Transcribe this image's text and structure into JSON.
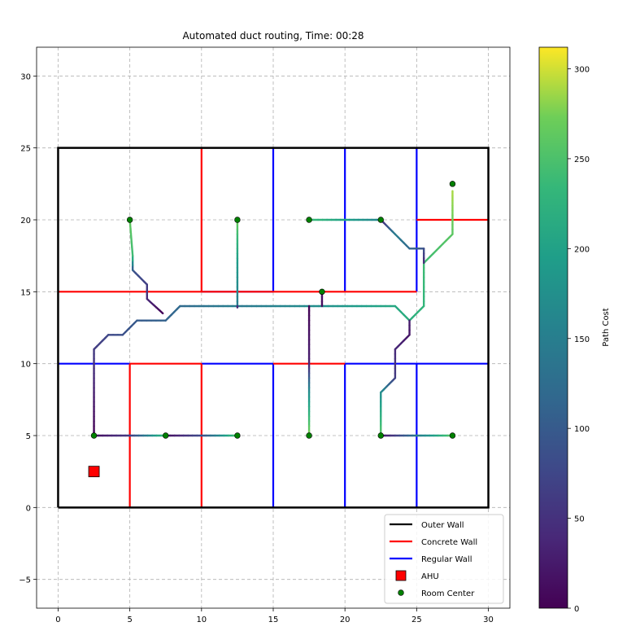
{
  "chart_data": {
    "type": "line",
    "title": "Automated duct routing, Time: 00:28",
    "xlabel": "",
    "ylabel": "",
    "xlim": [
      -1.5,
      31.5
    ],
    "ylim": [
      -7,
      32
    ],
    "x_ticks": [
      0,
      5,
      10,
      15,
      20,
      25,
      30
    ],
    "y_ticks": [
      -5,
      0,
      5,
      10,
      15,
      20,
      25,
      30
    ],
    "grid": true,
    "legend_position": "lower-right",
    "legend": [
      {
        "name": "Outer Wall",
        "kind": "line",
        "color": "#000000"
      },
      {
        "name": "Concrete Wall",
        "kind": "line",
        "color": "#ff0000"
      },
      {
        "name": "Regular Wall",
        "kind": "line",
        "color": "#0000ff"
      },
      {
        "name": "AHU",
        "kind": "square",
        "color": "#ff0000"
      },
      {
        "name": "Room Center",
        "kind": "dot",
        "color": "#008000"
      }
    ],
    "outer_wall": [
      [
        0,
        0
      ],
      [
        30,
        0
      ],
      [
        30,
        25
      ],
      [
        0,
        25
      ],
      [
        0,
        0
      ]
    ],
    "concrete_walls": [
      [
        [
          0,
          15
        ],
        [
          25,
          15
        ]
      ],
      [
        [
          10,
          15
        ],
        [
          10,
          25
        ]
      ],
      [
        [
          25,
          20
        ],
        [
          30,
          20
        ]
      ],
      [
        [
          5,
          0
        ],
        [
          5,
          10
        ]
      ],
      [
        [
          5,
          10
        ],
        [
          10,
          10
        ]
      ],
      [
        [
          10,
          0
        ],
        [
          10,
          10
        ]
      ],
      [
        [
          15,
          10
        ],
        [
          20,
          10
        ]
      ]
    ],
    "regular_walls": [
      [
        [
          15,
          15
        ],
        [
          15,
          25
        ]
      ],
      [
        [
          10,
          15
        ],
        [
          15,
          15
        ]
      ],
      [
        [
          20,
          15
        ],
        [
          20,
          25
        ]
      ],
      [
        [
          25,
          15
        ],
        [
          25,
          25
        ]
      ],
      [
        [
          0,
          10
        ],
        [
          5,
          10
        ]
      ],
      [
        [
          10,
          10
        ],
        [
          15,
          10
        ]
      ],
      [
        [
          20,
          10
        ],
        [
          30,
          10
        ]
      ],
      [
        [
          15,
          0
        ],
        [
          15,
          10
        ]
      ],
      [
        [
          20,
          0
        ],
        [
          20,
          10
        ]
      ],
      [
        [
          25,
          0
        ],
        [
          25,
          10
        ]
      ]
    ],
    "ahu": [
      2.5,
      2.5
    ],
    "room_centers": [
      [
        5,
        20
      ],
      [
        12.5,
        20
      ],
      [
        17.5,
        20
      ],
      [
        22.5,
        20
      ],
      [
        27.5,
        22.5
      ],
      [
        18.4,
        15
      ],
      [
        2.5,
        5
      ],
      [
        7.5,
        5
      ],
      [
        12.5,
        5
      ],
      [
        17.5,
        5
      ],
      [
        22.5,
        5
      ],
      [
        27.5,
        5
      ]
    ],
    "colorbar": {
      "label": "Path Cost",
      "min": 0,
      "max": 312,
      "ticks": [
        0,
        50,
        100,
        150,
        200,
        250,
        300
      ]
    },
    "duct_paths": [
      {
        "points": [
          [
            7.3,
            13.5
          ],
          [
            6.2,
            14.5
          ],
          [
            6.2,
            15.5
          ],
          [
            5.2,
            16.5
          ],
          [
            5.2,
            17.5
          ],
          [
            5,
            20
          ]
        ],
        "cost": [
          0,
          40,
          65,
          90,
          240,
          265
        ]
      },
      {
        "points": [
          [
            2.5,
            5
          ],
          [
            2.5,
            11
          ],
          [
            3.5,
            12
          ],
          [
            4.5,
            12
          ],
          [
            5.5,
            13
          ],
          [
            7.5,
            13
          ],
          [
            8.5,
            14
          ],
          [
            12.5,
            14
          ],
          [
            12.5,
            17
          ],
          [
            12.5,
            19
          ],
          [
            12.5,
            20
          ]
        ],
        "cost": [
          0,
          60,
          75,
          85,
          100,
          110,
          120,
          150,
          190,
          240,
          270
        ]
      },
      {
        "points": [
          [
            12.5,
            14
          ],
          [
            17.5,
            14
          ],
          [
            23.5,
            14
          ],
          [
            24.5,
            13
          ],
          [
            25.5,
            14
          ],
          [
            25.5,
            17
          ],
          [
            27.5,
            19
          ],
          [
            27.5,
            22
          ]
        ],
        "cost": [
          140,
          170,
          210,
          220,
          230,
          240,
          260,
          290
        ]
      },
      {
        "points": [
          [
            12.5,
            14
          ],
          [
            12.5,
            13.9
          ]
        ],
        "cost": [
          40,
          40
        ]
      },
      {
        "points": [
          [
            17.5,
            14
          ],
          [
            17.5,
            10
          ],
          [
            17.5,
            8
          ],
          [
            17.5,
            5
          ]
        ],
        "cost": [
          0,
          30,
          170,
          280
        ]
      },
      {
        "points": [
          [
            18.4,
            14
          ],
          [
            18.4,
            15
          ]
        ],
        "cost": [
          10,
          20
        ]
      },
      {
        "points": [
          [
            17.5,
            20
          ],
          [
            20,
            20
          ],
          [
            22.5,
            20
          ]
        ],
        "cost": [
          240,
          200,
          160
        ]
      },
      {
        "points": [
          [
            22.5,
            20
          ],
          [
            23.5,
            19
          ],
          [
            24.5,
            18
          ],
          [
            25.5,
            18
          ],
          [
            25.5,
            17
          ]
        ],
        "cost": [
          30,
          150,
          120,
          90,
          40
        ]
      },
      {
        "points": [
          [
            24.5,
            13
          ],
          [
            24.5,
            12
          ],
          [
            23.5,
            11
          ],
          [
            23.5,
            9
          ],
          [
            22.5,
            8
          ],
          [
            22.5,
            5
          ]
        ],
        "cost": [
          30,
          20,
          40,
          60,
          170,
          260
        ]
      },
      {
        "points": [
          [
            22.5,
            5
          ],
          [
            23.5,
            5
          ],
          [
            25,
            5
          ],
          [
            26.5,
            5
          ],
          [
            27.5,
            5
          ]
        ],
        "cost": [
          10,
          60,
          140,
          210,
          260
        ]
      },
      {
        "points": [
          [
            2.5,
            5
          ],
          [
            5,
            5
          ],
          [
            7.5,
            5
          ]
        ],
        "cost": [
          10,
          60,
          240
        ]
      },
      {
        "points": [
          [
            7.5,
            5
          ],
          [
            10,
            5
          ],
          [
            12.5,
            5
          ]
        ],
        "cost": [
          10,
          80,
          250
        ]
      }
    ]
  }
}
